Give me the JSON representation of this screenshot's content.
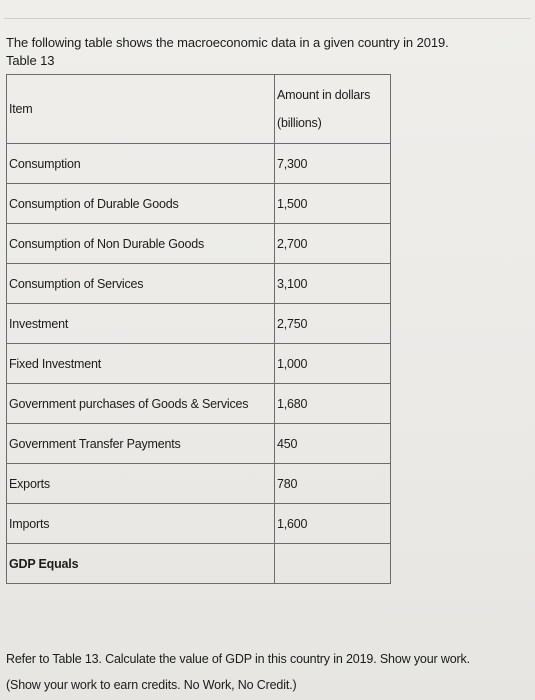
{
  "intro": {
    "line1": "The following table shows the macroeconomic data in a given country in 2019.",
    "line2": "Table 13"
  },
  "table": {
    "headers": {
      "item": "Item",
      "amount_line1": "Amount in dollars",
      "amount_line2": "(billions)"
    },
    "rows": [
      {
        "item": "Consumption",
        "amount": "7,300"
      },
      {
        "item": "Consumption of Durable Goods",
        "amount": "1,500"
      },
      {
        "item": "Consumption of Non Durable Goods",
        "amount": "2,700"
      },
      {
        "item": "Consumption of Services",
        "amount": "3,100"
      },
      {
        "item": "Investment",
        "amount": "2,750"
      },
      {
        "item": "Fixed Investment",
        "amount": "1,000"
      },
      {
        "item": "Government purchases of Goods & Services",
        "amount": "1,680"
      },
      {
        "item": "Government Transfer Payments",
        "amount": "450"
      },
      {
        "item": "Exports",
        "amount": "780"
      },
      {
        "item": "Imports",
        "amount": "1,600"
      },
      {
        "item": "GDP Equals",
        "amount": ""
      }
    ]
  },
  "question": {
    "line1": "Refer to Table 13. Calculate the value of GDP in this country in 2019. Show your work.",
    "line2": "(Show your work to earn credits. No Work, No Credit.)"
  }
}
